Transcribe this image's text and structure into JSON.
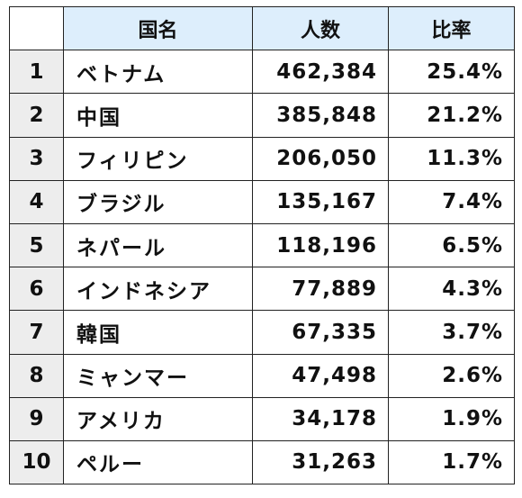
{
  "table": {
    "headers": {
      "corner": "",
      "country": "国名",
      "count": "人数",
      "ratio": "比率"
    },
    "rows": [
      {
        "rank": "1",
        "country": "ベトナム",
        "count": "462,384",
        "ratio": "25.4%"
      },
      {
        "rank": "2",
        "country": "中国",
        "count": "385,848",
        "ratio": "21.2%"
      },
      {
        "rank": "3",
        "country": "フィリピン",
        "count": "206,050",
        "ratio": "11.3%"
      },
      {
        "rank": "4",
        "country": "ブラジル",
        "count": "135,167",
        "ratio": "7.4%"
      },
      {
        "rank": "5",
        "country": "ネパール",
        "count": "118,196",
        "ratio": "6.5%"
      },
      {
        "rank": "6",
        "country": "インドネシア",
        "count": "77,889",
        "ratio": "4.3%"
      },
      {
        "rank": "7",
        "country": "韓国",
        "count": "67,335",
        "ratio": "3.7%"
      },
      {
        "rank": "8",
        "country": "ミャンマー",
        "count": "47,498",
        "ratio": "2.6%"
      },
      {
        "rank": "9",
        "country": "アメリカ",
        "count": "34,178",
        "ratio": "1.9%"
      },
      {
        "rank": "10",
        "country": "ペルー",
        "count": "31,263",
        "ratio": "1.7%"
      }
    ]
  },
  "colors": {
    "header_bg": "#ddeefc",
    "rank_bg": "#ededed",
    "border": "#222222"
  }
}
